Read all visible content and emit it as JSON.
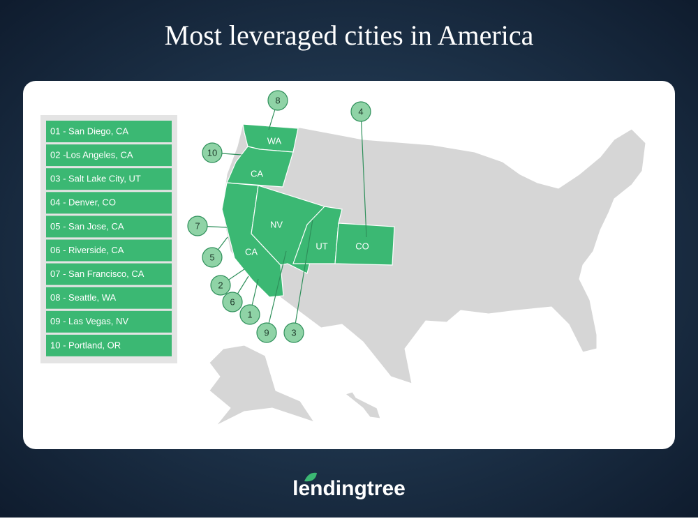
{
  "title": "Most leveraged cities in America",
  "legend": [
    "01 - San Diego, CA",
    "02 -Los Angeles, CA",
    "03 - Salt Lake City, UT",
    "04 - Denver, CO",
    "05 - San Jose, CA",
    "06 - Riverside, CA",
    "07 - San Francisco, CA",
    "08 - Seattle, WA",
    "09 - Las Vegas, NV",
    "10 - Portland, OR"
  ],
  "state_labels": [
    "WA",
    "CA",
    "NV",
    "CA",
    "UT",
    "CO"
  ],
  "markers": [
    8,
    4,
    10,
    7,
    5,
    2,
    6,
    1,
    9,
    3
  ],
  "logo": "lendingtree"
}
